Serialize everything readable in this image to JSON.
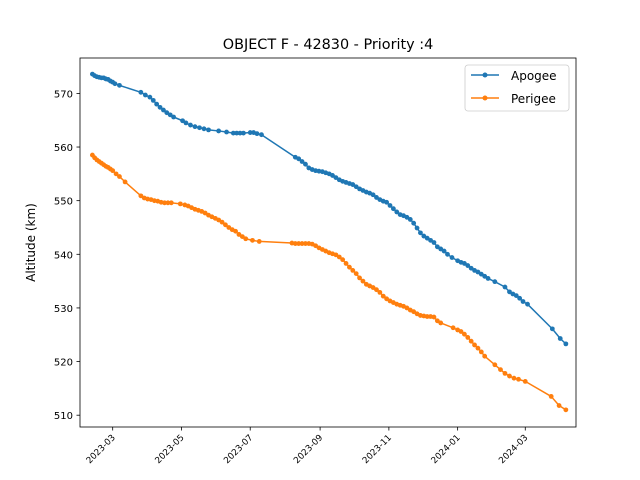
{
  "chart_data": {
    "type": "line",
    "title": "OBJECT F - 42830 - Priority :4",
    "xlabel": "",
    "ylabel": "Altitude (km)",
    "x_axis_type": "date",
    "xlim": [
      "2023-01-31",
      "2024-04-15"
    ],
    "ylim": [
      507.8,
      576.6
    ],
    "xticks": [
      "2023-03",
      "2023-05",
      "2023-07",
      "2023-09",
      "2023-11",
      "2024-01",
      "2024-03"
    ],
    "xtick_dates": [
      "2023-03-01",
      "2023-05-01",
      "2023-07-01",
      "2023-09-01",
      "2023-11-01",
      "2024-01-01",
      "2024-03-01"
    ],
    "yticks": [
      510,
      520,
      530,
      540,
      550,
      560,
      570
    ],
    "grid": false,
    "legend_position": "top-right",
    "series": [
      {
        "name": "Apogee",
        "color": "#1f77b4",
        "marker": "circle",
        "points": [
          [
            "2023-02-11",
            573.6
          ],
          [
            "2023-02-13",
            573.3
          ],
          [
            "2023-02-15",
            573.1
          ],
          [
            "2023-02-17",
            573.0
          ],
          [
            "2023-02-19",
            572.9
          ],
          [
            "2023-02-21",
            572.9
          ],
          [
            "2023-02-23",
            572.7
          ],
          [
            "2023-02-25",
            572.6
          ],
          [
            "2023-02-27",
            572.3
          ],
          [
            "2023-03-01",
            572.1
          ],
          [
            "2023-03-03",
            571.8
          ],
          [
            "2023-03-07",
            571.5
          ],
          [
            "2023-03-26",
            570.2
          ],
          [
            "2023-03-30",
            569.7
          ],
          [
            "2023-04-03",
            569.3
          ],
          [
            "2023-04-06",
            568.7
          ],
          [
            "2023-04-09",
            568.0
          ],
          [
            "2023-04-12",
            567.4
          ],
          [
            "2023-04-15",
            566.9
          ],
          [
            "2023-04-18",
            566.4
          ],
          [
            "2023-04-21",
            566.0
          ],
          [
            "2023-04-24",
            565.6
          ],
          [
            "2023-05-02",
            564.9
          ],
          [
            "2023-05-05",
            564.5
          ],
          [
            "2023-05-09",
            564.1
          ],
          [
            "2023-05-13",
            563.8
          ],
          [
            "2023-05-17",
            563.6
          ],
          [
            "2023-05-21",
            563.4
          ],
          [
            "2023-05-25",
            563.2
          ],
          [
            "2023-06-03",
            563.0
          ],
          [
            "2023-06-10",
            562.8
          ],
          [
            "2023-06-16",
            562.6
          ],
          [
            "2023-06-19",
            562.6
          ],
          [
            "2023-06-22",
            562.6
          ],
          [
            "2023-06-25",
            562.6
          ],
          [
            "2023-07-01",
            562.7
          ],
          [
            "2023-07-04",
            562.7
          ],
          [
            "2023-07-07",
            562.5
          ],
          [
            "2023-07-11",
            562.3
          ],
          [
            "2023-08-10",
            558.1
          ],
          [
            "2023-08-13",
            557.8
          ],
          [
            "2023-08-16",
            557.3
          ],
          [
            "2023-08-19",
            556.8
          ],
          [
            "2023-08-22",
            556.1
          ],
          [
            "2023-08-25",
            555.8
          ],
          [
            "2023-08-28",
            555.6
          ],
          [
            "2023-08-31",
            555.5
          ],
          [
            "2023-09-03",
            555.4
          ],
          [
            "2023-09-06",
            555.2
          ],
          [
            "2023-09-09",
            555.0
          ],
          [
            "2023-09-12",
            554.7
          ],
          [
            "2023-09-15",
            554.3
          ],
          [
            "2023-09-18",
            553.9
          ],
          [
            "2023-09-21",
            553.6
          ],
          [
            "2023-09-24",
            553.4
          ],
          [
            "2023-09-27",
            553.2
          ],
          [
            "2023-09-30",
            553.0
          ],
          [
            "2023-10-03",
            552.6
          ],
          [
            "2023-10-06",
            552.2
          ],
          [
            "2023-10-09",
            551.9
          ],
          [
            "2023-10-12",
            551.6
          ],
          [
            "2023-10-15",
            551.4
          ],
          [
            "2023-10-18",
            551.1
          ],
          [
            "2023-10-21",
            550.6
          ],
          [
            "2023-10-24",
            550.2
          ],
          [
            "2023-10-27",
            549.9
          ],
          [
            "2023-10-30",
            549.7
          ],
          [
            "2023-11-02",
            549.1
          ],
          [
            "2023-11-05",
            548.5
          ],
          [
            "2023-11-08",
            547.9
          ],
          [
            "2023-11-11",
            547.4
          ],
          [
            "2023-11-14",
            547.2
          ],
          [
            "2023-11-17",
            546.9
          ],
          [
            "2023-11-20",
            546.5
          ],
          [
            "2023-11-23",
            545.8
          ],
          [
            "2023-11-26",
            544.9
          ],
          [
            "2023-11-29",
            544.0
          ],
          [
            "2023-12-02",
            543.4
          ],
          [
            "2023-12-05",
            543.0
          ],
          [
            "2023-12-08",
            542.6
          ],
          [
            "2023-12-11",
            542.2
          ],
          [
            "2023-12-14",
            541.4
          ],
          [
            "2023-12-17",
            541.0
          ],
          [
            "2023-12-20",
            540.6
          ],
          [
            "2023-12-23",
            540.0
          ],
          [
            "2023-12-27",
            539.4
          ],
          [
            "2024-01-01",
            538.8
          ],
          [
            "2024-01-04",
            538.5
          ],
          [
            "2024-01-07",
            538.3
          ],
          [
            "2024-01-10",
            537.9
          ],
          [
            "2024-01-13",
            537.4
          ],
          [
            "2024-01-16",
            537.0
          ],
          [
            "2024-01-19",
            536.7
          ],
          [
            "2024-01-22",
            536.3
          ],
          [
            "2024-01-25",
            535.9
          ],
          [
            "2024-01-28",
            535.5
          ],
          [
            "2024-02-03",
            534.9
          ],
          [
            "2024-02-12",
            533.9
          ],
          [
            "2024-02-16",
            533.0
          ],
          [
            "2024-02-19",
            532.6
          ],
          [
            "2024-02-22",
            532.3
          ],
          [
            "2024-02-25",
            531.8
          ],
          [
            "2024-02-28",
            531.2
          ],
          [
            "2024-03-03",
            530.7
          ],
          [
            "2024-03-25",
            526.1
          ],
          [
            "2024-04-01",
            524.3
          ],
          [
            "2024-04-06",
            523.3
          ]
        ]
      },
      {
        "name": "Perigee",
        "color": "#ff7f0e",
        "marker": "circle",
        "points": [
          [
            "2023-02-11",
            558.5
          ],
          [
            "2023-02-13",
            558.0
          ],
          [
            "2023-02-15",
            557.6
          ],
          [
            "2023-02-17",
            557.3
          ],
          [
            "2023-02-19",
            557.0
          ],
          [
            "2023-02-21",
            556.7
          ],
          [
            "2023-02-23",
            556.4
          ],
          [
            "2023-02-25",
            556.2
          ],
          [
            "2023-02-27",
            555.9
          ],
          [
            "2023-03-01",
            555.6
          ],
          [
            "2023-03-04",
            555.0
          ],
          [
            "2023-03-07",
            554.5
          ],
          [
            "2023-03-12",
            553.5
          ],
          [
            "2023-03-26",
            550.9
          ],
          [
            "2023-03-29",
            550.5
          ],
          [
            "2023-04-01",
            550.3
          ],
          [
            "2023-04-04",
            550.2
          ],
          [
            "2023-04-07",
            550.0
          ],
          [
            "2023-04-10",
            549.9
          ],
          [
            "2023-04-13",
            549.7
          ],
          [
            "2023-04-16",
            549.6
          ],
          [
            "2023-04-19",
            549.6
          ],
          [
            "2023-04-22",
            549.6
          ],
          [
            "2023-04-30",
            549.4
          ],
          [
            "2023-05-04",
            549.2
          ],
          [
            "2023-05-07",
            549.0
          ],
          [
            "2023-05-10",
            548.7
          ],
          [
            "2023-05-13",
            548.4
          ],
          [
            "2023-05-16",
            548.2
          ],
          [
            "2023-05-19",
            548.0
          ],
          [
            "2023-05-22",
            547.7
          ],
          [
            "2023-05-25",
            547.3
          ],
          [
            "2023-05-28",
            547.0
          ],
          [
            "2023-05-31",
            546.7
          ],
          [
            "2023-06-03",
            546.4
          ],
          [
            "2023-06-06",
            546.0
          ],
          [
            "2023-06-09",
            545.5
          ],
          [
            "2023-06-12",
            545.0
          ],
          [
            "2023-06-15",
            544.6
          ],
          [
            "2023-06-18",
            544.3
          ],
          [
            "2023-06-21",
            543.7
          ],
          [
            "2023-06-24",
            543.3
          ],
          [
            "2023-06-27",
            542.9
          ],
          [
            "2023-07-03",
            542.6
          ],
          [
            "2023-07-09",
            542.4
          ],
          [
            "2023-08-07",
            542.1
          ],
          [
            "2023-08-10",
            542.0
          ],
          [
            "2023-08-13",
            542.0
          ],
          [
            "2023-08-16",
            542.0
          ],
          [
            "2023-08-19",
            542.0
          ],
          [
            "2023-08-22",
            542.0
          ],
          [
            "2023-08-25",
            541.9
          ],
          [
            "2023-08-28",
            541.6
          ],
          [
            "2023-08-31",
            541.2
          ],
          [
            "2023-09-03",
            540.9
          ],
          [
            "2023-09-06",
            540.6
          ],
          [
            "2023-09-09",
            540.3
          ],
          [
            "2023-09-12",
            540.1
          ],
          [
            "2023-09-15",
            539.9
          ],
          [
            "2023-09-18",
            539.5
          ],
          [
            "2023-09-21",
            539.0
          ],
          [
            "2023-09-24",
            538.3
          ],
          [
            "2023-09-27",
            537.6
          ],
          [
            "2023-09-30",
            537.0
          ],
          [
            "2023-10-03",
            536.4
          ],
          [
            "2023-10-06",
            535.6
          ],
          [
            "2023-10-09",
            535.0
          ],
          [
            "2023-10-12",
            534.4
          ],
          [
            "2023-10-15",
            534.1
          ],
          [
            "2023-10-18",
            533.8
          ],
          [
            "2023-10-21",
            533.4
          ],
          [
            "2023-10-24",
            532.9
          ],
          [
            "2023-10-27",
            532.2
          ],
          [
            "2023-10-30",
            531.7
          ],
          [
            "2023-11-02",
            531.3
          ],
          [
            "2023-11-05",
            531.0
          ],
          [
            "2023-11-08",
            530.7
          ],
          [
            "2023-11-11",
            530.5
          ],
          [
            "2023-11-14",
            530.3
          ],
          [
            "2023-11-17",
            530.0
          ],
          [
            "2023-11-20",
            529.6
          ],
          [
            "2023-11-23",
            529.3
          ],
          [
            "2023-11-26",
            528.9
          ],
          [
            "2023-11-29",
            528.6
          ],
          [
            "2023-12-02",
            528.5
          ],
          [
            "2023-12-05",
            528.4
          ],
          [
            "2023-12-08",
            528.4
          ],
          [
            "2023-12-11",
            528.3
          ],
          [
            "2023-12-14",
            527.6
          ],
          [
            "2023-12-17",
            527.2
          ],
          [
            "2023-12-28",
            526.3
          ],
          [
            "2024-01-01",
            525.9
          ],
          [
            "2024-01-04",
            525.6
          ],
          [
            "2024-01-07",
            525.1
          ],
          [
            "2024-01-10",
            524.5
          ],
          [
            "2024-01-13",
            523.8
          ],
          [
            "2024-01-16",
            523.1
          ],
          [
            "2024-01-19",
            522.5
          ],
          [
            "2024-01-22",
            521.8
          ],
          [
            "2024-01-25",
            521.0
          ],
          [
            "2024-02-03",
            519.4
          ],
          [
            "2024-02-08",
            518.5
          ],
          [
            "2024-02-12",
            517.8
          ],
          [
            "2024-02-16",
            517.3
          ],
          [
            "2024-02-20",
            516.9
          ],
          [
            "2024-02-24",
            516.7
          ],
          [
            "2024-03-01",
            516.3
          ],
          [
            "2024-03-24",
            513.5
          ],
          [
            "2024-03-31",
            511.8
          ],
          [
            "2024-04-06",
            511.0
          ]
        ]
      }
    ]
  }
}
